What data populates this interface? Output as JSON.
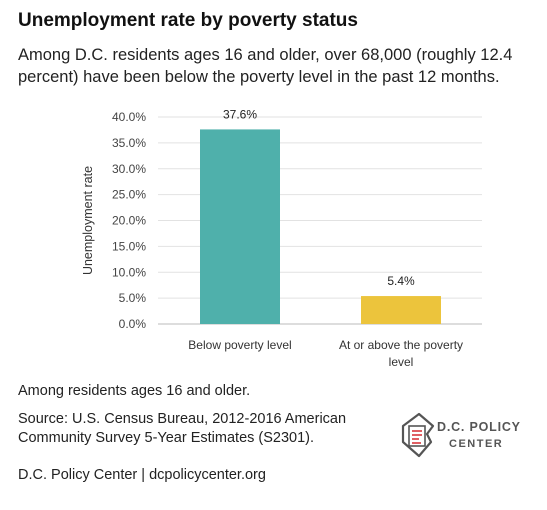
{
  "header": {
    "title": "Unemployment rate by poverty status",
    "subtitle": "Among D.C. residents ages 16 and older, over 68,000 (roughly 12.4 percent) have been below the poverty level in the past 12 months."
  },
  "chart_data": {
    "type": "bar",
    "categories": [
      "Below poverty level",
      "At or above the poverty level"
    ],
    "values": [
      37.6,
      5.4
    ],
    "data_labels": [
      "37.6%",
      "5.4%"
    ],
    "bar_colors": [
      "#4fb0ab",
      "#ecc43c"
    ],
    "ylabel": "Unemployment rate",
    "xlabel": "",
    "ylim": [
      0,
      40
    ],
    "yticks": [
      "0.0%",
      "5.0%",
      "10.0%",
      "15.0%",
      "20.0%",
      "25.0%",
      "30.0%",
      "35.0%",
      "40.0%"
    ],
    "grid": true
  },
  "notes": {
    "population": "Among residents ages 16 and older.",
    "source": "Source: U.S. Census Bureau, 2012-2016 American Community Survey 5-Year Estimates (S2301)."
  },
  "footer": {
    "text": "D.C. Policy Center  |  dcpolicycenter.org"
  },
  "logo": {
    "line1": "D.C. POLICY",
    "line2": "CENTER",
    "icon": "dc-map-document-icon",
    "accent": "#d9373c"
  }
}
